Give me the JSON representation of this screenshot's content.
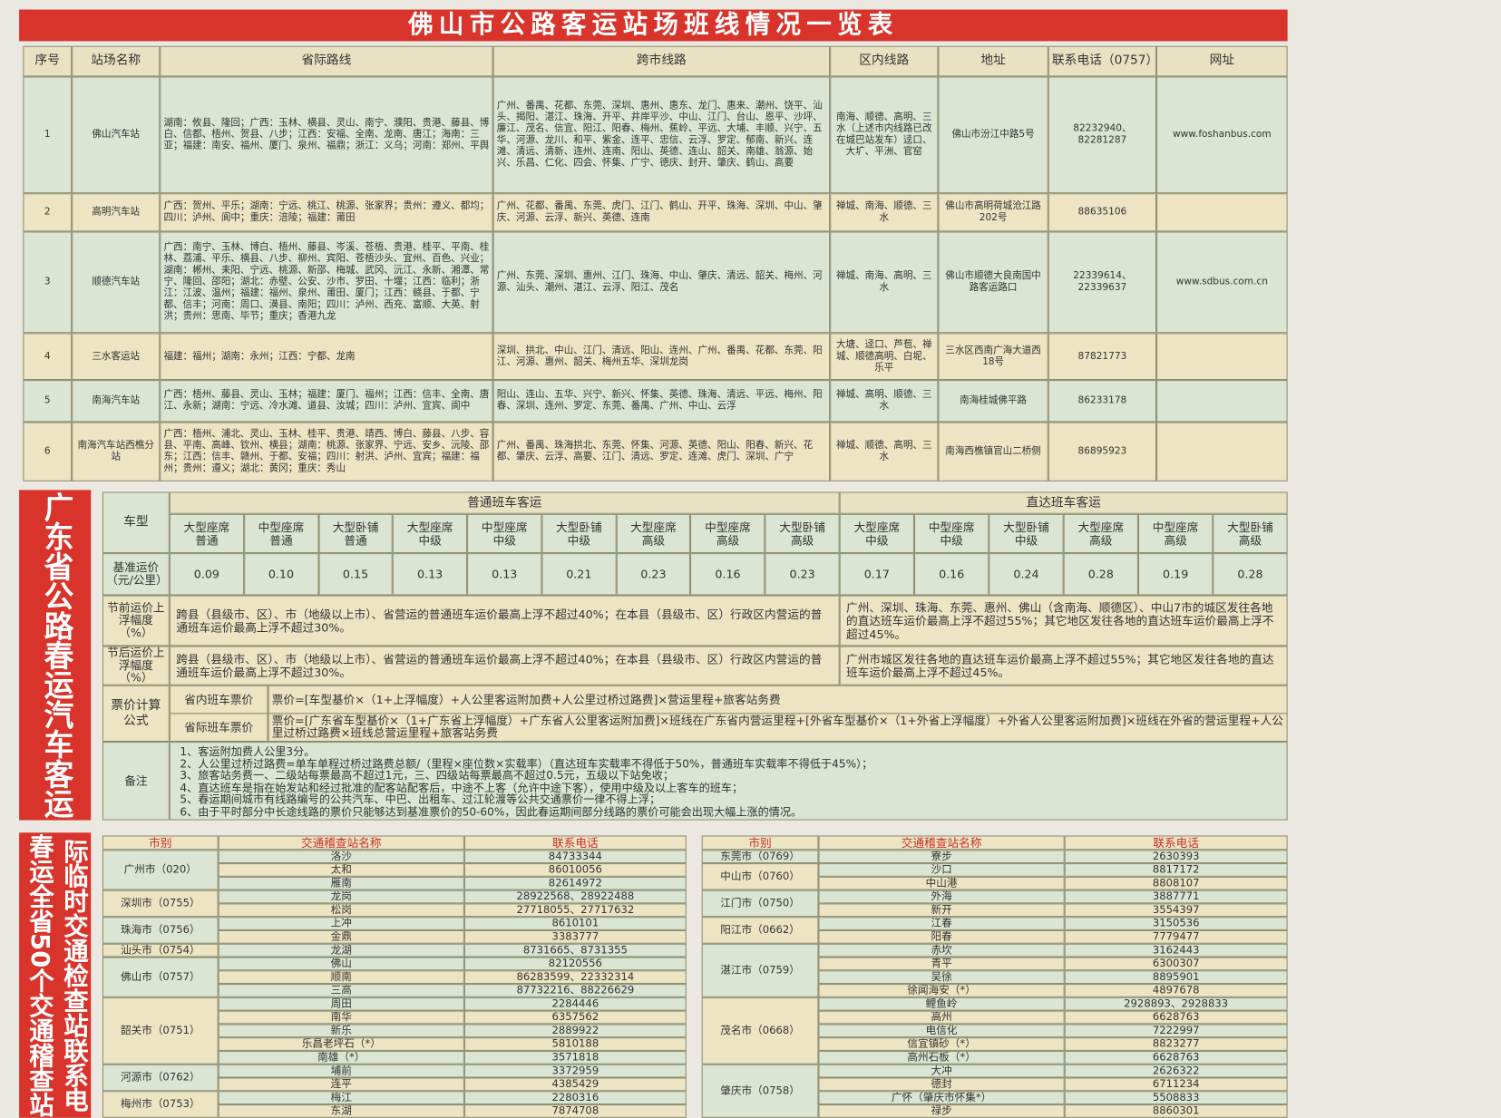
{
  "header": {
    "title": "佛山市公路客运站场班线情况一览表"
  },
  "stations_table": {
    "headers": [
      "序号",
      "站场名称",
      "省际路线",
      "跨市线路",
      "区内线路",
      "地址",
      "联系电话（0757）",
      "网址"
    ],
    "rows": [
      [
        "1",
        "佛山汽车站",
        "湖南：攸县、隆回；广西：玉林、横县、灵山、南宁、濮阳、贵港、藤县、博白、信都、梧州、贺县、八步；江西：安福、全南、龙南、唐江；海南：三亚；福建：南安、福州、厦门、泉州、福鼎；浙江：义乌；河南：郑州、平舆",
        "广州、番禺、花都、东莞、深圳、惠州、惠东、龙门、惠来、潮州、饶平、汕头、揭阳、湛江、珠海、开平、井岸平沙、中山、江门、台山、恩平、沙坪、廉江、茂名、信宜、阳江、阳春、梅州、蕉岭、平远、大埔、丰顺、兴宁、五华、河源、龙川、和平、紫金、连平、忠信、云浮、罗定、郁南、新兴、连滩、清远、清新、连州、连南、阳山、英德、连山、韶关、南雄、翁源、始兴、乐昌、仁化、四会、怀集、广宁、德庆、封开、肇庆、鹤山、高要",
        "南海、顺德、高明、三水（上述市内线路已改在城巴站发车）迳口、大圹、平洲、官窑",
        "佛山市汾江中路5号",
        "82232940、82281287",
        "www.foshanbus.com"
      ],
      [
        "2",
        "高明汽车站",
        "广西：贺州、平乐；湖南：宁远、桃江、桃源、张家界；贵州：遵义、都均；四川：泸州、阆中；重庆：涪陵；福建：莆田",
        "广州、花都、番禺、东莞、虎门、江门、鹤山、开平、珠海、深圳、中山、肇庆、河源、云浮、新兴、英德、连南",
        "禅城、南海、顺德、三水",
        "佛山市高明荷城沧江路202号",
        "88635106",
        null
      ],
      [
        "3",
        "顺德汽车站",
        "广西：南宁、玉林、博白、梧州、藤县、岑溪、苍梧、贵港、桂平、平南、桂林、荔浦、平乐、横县、八步、柳州、宾阳、苍梧沙头、宜州、百色、兴业；湖南：郴州、耒阳、宁远、桃源、新邵、梅城、武冈、沅江、永新、湘潭、常宁、隆回、邵阳；湖北：赤壁、公安、沙市、罗田、十堰；江西：临利；浙江：江波、温州；福建：福州、泉州、莆田、厦门；江西：赣县、于都、宁都、信丰；河南：周口、潢县、南阳；四川：泸州、西充、富顺、大英、射洪；贵州：思南、毕节；重庆；香港九龙",
        "广州、东莞、深圳、惠州、江门、珠海、中山、肇庆、清远、韶关、梅州、河源、汕头、潮州、湛江、云浮、阳江、茂名",
        "禅城、南海、高明、三水",
        "佛山市顺德大良南国中路客运路口",
        "22339614、22339637",
        "www.sdbus.com.cn"
      ],
      [
        "4",
        "三水客运站",
        "福建：福州；湖南：永州；江西：宁都、龙南",
        "深圳、拱北、中山、江门、清远、阳山、连州、广州、番禺、花都、东莞、阳江、河源、惠州、韶关、梅州五华、深圳龙岗",
        "大塘、迳口、芦苞、禅城、顺德高明、白坭、乐平",
        "三水区西南广海大道西18号",
        "87821773",
        null
      ],
      [
        "5",
        "南海汽车站",
        "广西：梧州、藤县、灵山、玉林；福建：厦门、福州；江西：信丰、全南、唐江、永新；湖南：宁远、冷水滩、道县、汝城；四川：泸州、宜宾、阆中",
        "阳山、连山、五华、兴宁、新兴、怀集、英德、珠海、清远、平远、梅州、阳春、深圳、连州、罗定、东莞、番禺、广州、中山、云浮",
        "禅城、高明、顺德、三水",
        "南海桂城佛平路",
        "86233178",
        null
      ],
      [
        "6",
        "南海汽车站西樵分站",
        "广西：梧州、浦北、灵山、玉林、桂平、贵港、靖西、博白、藤县、八步、容县、平南、高峰、钦州、横县；湖南：桃源、张家界、宁远、安乡、沅陵、邵东；江西：信丰、赣州、于都、安福；四川：射洪、泸州、宜宾；福建：福州；贵州：遵义；湖北：黄冈；重庆：秀山",
        "广州、番禺、珠海拱北、东莞、怀集、河源、英德、阳山、阳春、新兴、花都、肇庆、云浮、高要、江门、清远、罗定、连滩、虎门、深圳、广宁",
        "禅城、顺德、高明、三水",
        "南海西樵镇官山二桥侧",
        "86895923",
        null
      ]
    ]
  },
  "fares": {
    "side_title": "广东省公路春运汽车客运各车型票价计算方法",
    "type_label": "车型",
    "groups": [
      {
        "name": "普通班车客运",
        "types": [
          "大型座席普通",
          "中型座席普通",
          "大型卧铺普通",
          "大型座席中级",
          "中型座席中级",
          "大型卧铺中级",
          "大型座席高级",
          "中型座席高级",
          "大型卧铺高级"
        ],
        "base": [
          "0.09",
          "0.10",
          "0.15",
          "0.13",
          "0.13",
          "0.21",
          "0.23",
          "0.16",
          "0.23"
        ]
      },
      {
        "name": "直达班车客运",
        "types": [
          "大型座席中级",
          "中型座席中级",
          "大型卧铺中级",
          "大型座席高级",
          "中型座席高级",
          "大型卧铺高级"
        ],
        "base": [
          "0.17",
          "0.16",
          "0.24",
          "0.28",
          "0.19",
          "0.28"
        ]
      }
    ],
    "base_label": "基准运价（元/公里）",
    "pre_label": "节前运价上浮幅度（%）",
    "pre": [
      "跨县（县级市、区）、市（地级以上市）、省营运的普通班车运价最高上浮不超过40%；在本县（县级市、区）行政区内营运的普通班车运价最高上浮不超过30%。",
      "广州、深圳、珠海、东莞、惠州、佛山（含南海、顺德区）、中山7市的城区发往各地的直达班车运价最高上浮不超过55%；其它地区发往各地的直达班车运价最高上浮不超过45%。"
    ],
    "post_label": "节后运价上浮幅度（%）",
    "post": [
      "跨县（县级市、区）、市（地级以上市）、省营运的普通班车运价最高上浮不超过40%；在本县（县级市、区）行政区内营运的普通班车运价最高上浮不超过30%。",
      "广州市城区发往各地的直达班车运价最高上浮不超过55%；其它地区发往各地的直达班车运价最高上浮不超过45%。"
    ],
    "formula_label": "票价计算公式",
    "formulas": [
      [
        "省内班车票价",
        "票价=[车型基价×（1+上浮幅度）+人公里客运附加费+人公里过桥过路费]×营运里程+旅客站务费"
      ],
      [
        "省际班车票价",
        "票价=[广东省车型基价×（1+广东省上浮幅度）+广东省人公里客运附加费]×班线在广东省内营运里程+[外省车型基价×（1+外省上浮幅度）+外省人公里客运附加费]×班线在外省的营运里程+人公里过桥过路费×班线总营运里程+旅客站务费"
      ]
    ],
    "notes_label": "备注",
    "notes": [
      "1、客运附加费人公里3分。",
      "2、人公里过桥过路费=单车单程过桥过路费总额/（里程×座位数×实载率）（直达班车实载率不得低于50%，普通班车实载率不得低于45%）；",
      "3、旅客站务费一、二级站每票最高不超过1元，三、四级站每票最高不超过0.5元，五级以下站免收；",
      "4、直达班车是指在始发站和经过批准的配客站配客后，中途不上客（允许中途下客），使用中级及以上客车的班车；",
      "5、春运期间城市有线路编号的公共汽车、中巴、出租车、过江轮渡等公共交通票价一律不得上浮；",
      "6、由于平时部分中长途线路的票价只能够达到基准票价的50-60%，因此春运期间部分线路的票价可能会出现大幅上涨的情况。"
    ]
  },
  "checkpoints": {
    "side_title": [
      "际临时交通检查站联系电",
      "春运全省50个交通稽查站"
    ],
    "tables": [
      {
        "headers": [
          "市别",
          "交通稽查站名称",
          "联系电话"
        ],
        "groups": [
          {
            "city": "广州市（020）",
            "stations": [
              [
                "洛沙",
                "84733344"
              ],
              [
                "太和",
                "86010056"
              ],
              [
                "雁南",
                "82614972"
              ]
            ]
          },
          {
            "city": "深圳市（0755）",
            "stations": [
              [
                "龙岗",
                "28922568、28922488"
              ],
              [
                "松岗",
                "27718055、27717632"
              ]
            ]
          },
          {
            "city": "珠海市（0756）",
            "stations": [
              [
                "上冲",
                "8610101"
              ],
              [
                "金鼎",
                "3383777"
              ]
            ]
          },
          {
            "city": "汕头市（0754）",
            "stations": [
              [
                "龙湖",
                "8731665、8731355"
              ]
            ]
          },
          {
            "city": "佛山市（0757）",
            "stations": [
              [
                "佛山",
                "82120556"
              ],
              [
                "顺南",
                "86283599、22332314"
              ],
              [
                "三高",
                "87732216、88226629"
              ]
            ]
          },
          {
            "city": "韶关市（0751）",
            "stations": [
              [
                "周田",
                "2284446"
              ],
              [
                "南华",
                "6357562"
              ],
              [
                "新乐",
                "2889922"
              ],
              [
                "乐昌老坪石（*）",
                "5810188"
              ],
              [
                "南雄（*）",
                "3571818"
              ]
            ]
          },
          {
            "city": "河源市（0762）",
            "stations": [
              [
                "埔前",
                "3372959"
              ],
              [
                "连平",
                "4385429"
              ]
            ]
          },
          {
            "city": "梅州市（0753）",
            "stations": [
              [
                "梅江",
                "2280316"
              ],
              [
                "东湖",
                "7874708"
              ]
            ]
          }
        ]
      },
      {
        "headers": [
          "市别",
          "交通稽查站名称",
          "联系电话"
        ],
        "groups": [
          {
            "city": "东莞市（0769）",
            "stations": [
              [
                "寮步",
                "2630393"
              ]
            ]
          },
          {
            "city": "中山市（0760）",
            "stations": [
              [
                "沙口",
                "8817172"
              ],
              [
                "中山港",
                "8808107"
              ]
            ]
          },
          {
            "city": "江门市（0750）",
            "stations": [
              [
                "外海",
                "3887771"
              ],
              [
                "新开",
                "3554397"
              ]
            ]
          },
          {
            "city": "阳江市（0662）",
            "stations": [
              [
                "江春",
                "3150536"
              ],
              [
                "阳春",
                "7779477"
              ]
            ]
          },
          {
            "city": "湛江市（0759）",
            "stations": [
              [
                "赤坎",
                "3162443"
              ],
              [
                "青平",
                "6300307"
              ],
              [
                "吴徐",
                "8895901"
              ],
              [
                "徐闻海安（*）",
                "4897678"
              ]
            ]
          },
          {
            "city": "茂名市（0668）",
            "stations": [
              [
                "鲤鱼岭",
                "2928893、2928833"
              ],
              [
                "高州",
                "6628763"
              ],
              [
                "电信化",
                "7222997"
              ],
              [
                "信宜镇砂（*）",
                "8823277"
              ],
              [
                "高州石板（*）",
                "6628763"
              ]
            ]
          },
          {
            "city": "肇庆市（0758）",
            "stations": [
              [
                "大冲",
                "2626322"
              ],
              [
                "德封",
                "6711234"
              ],
              [
                "广怀（肇庆市怀集*）",
                "5508833"
              ],
              [
                "禄步",
                "8860301"
              ]
            ]
          }
        ]
      }
    ]
  }
}
